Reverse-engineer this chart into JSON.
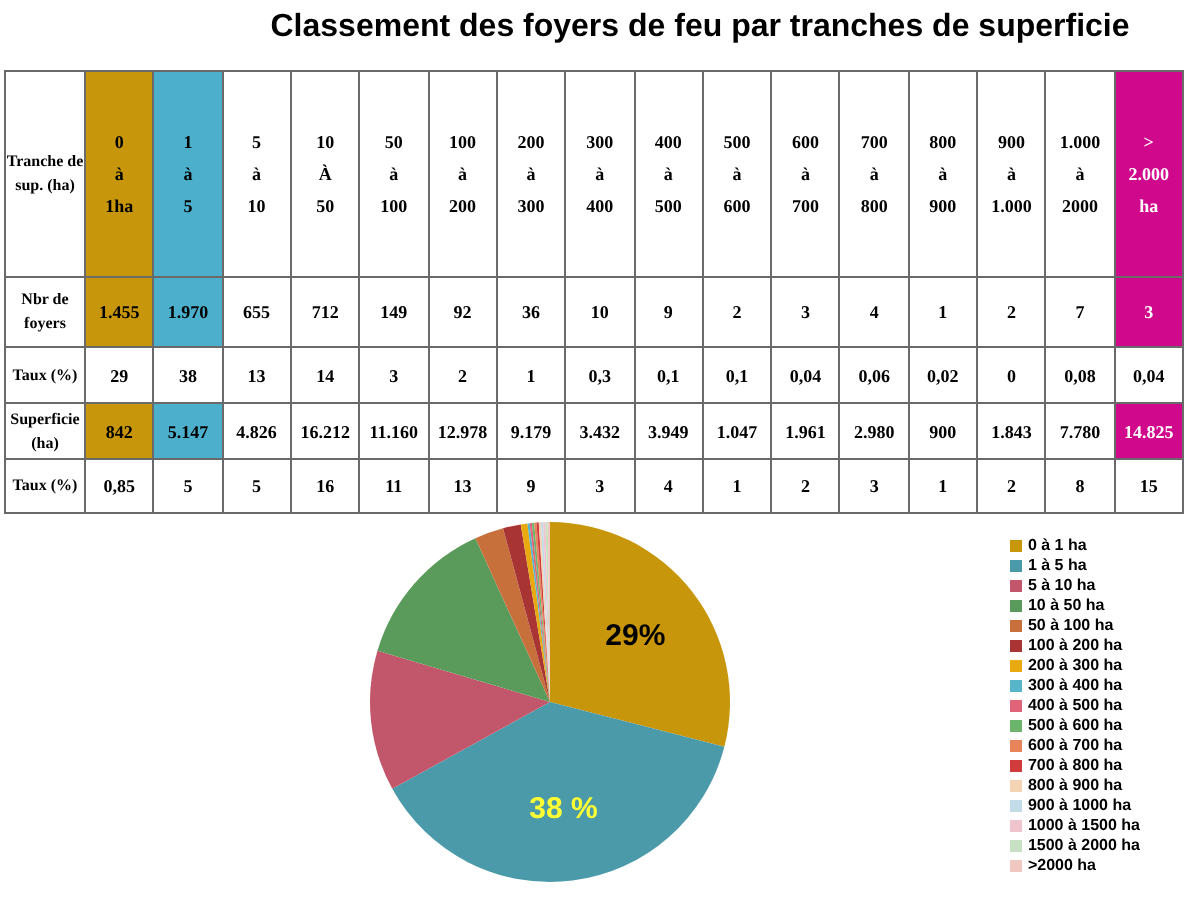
{
  "chart_data": [
    {
      "type": "heatmap",
      "title": "Classement des foyers de feu par tranches de superficie",
      "xlabel": "Tranche de sup. (ha)",
      "categories": [
        "0 à 1ha",
        "1 à 5",
        "5 à 10",
        "10 À 50",
        "50 à 100",
        "100 à 200",
        "200 à 300",
        "300 à 400",
        "400 à 500",
        "500 à 600",
        "600 à 700",
        "700 à 800",
        "800 à 900",
        "900 à 1.000",
        "1.000 à 2000",
        "> 2.000 ha"
      ],
      "y_categories": [
        "Nbr de foyers",
        "Taux (%)",
        "Superficie (ha)",
        "Taux (%)"
      ],
      "cells": [
        [
          1455,
          1970,
          655,
          712,
          149,
          92,
          36,
          10,
          9,
          2,
          3,
          4,
          1,
          2,
          7,
          3
        ],
        [
          29,
          38,
          13,
          14,
          3,
          2,
          1,
          0.3,
          0.1,
          0.1,
          0.04,
          0.06,
          0.02,
          0,
          0.08,
          0.04
        ],
        [
          842,
          5147,
          4826,
          16212,
          11160,
          12978,
          9179,
          3432,
          3949,
          1047,
          1961,
          2980,
          900,
          1843,
          7780,
          14825
        ],
        [
          0.85,
          5,
          5,
          16,
          11,
          13,
          9,
          3,
          4,
          1,
          2,
          3,
          1,
          2,
          8,
          15
        ]
      ],
      "cell_labels": [
        [
          "1.455",
          "1.970",
          "655",
          "712",
          "149",
          "92",
          "36",
          "10",
          "9",
          "2",
          "3",
          "4",
          "1",
          "2",
          "7",
          "3"
        ],
        [
          "29",
          "38",
          "13",
          "14",
          "3",
          "2",
          "1",
          "0,3",
          "0,1",
          "0,1",
          "0,04",
          "0,06",
          "0,02",
          "0",
          "0,08",
          "0,04"
        ],
        [
          "842",
          "5.147",
          "4.826",
          "16.212",
          "11.160",
          "12.978",
          "9.179",
          "3.432",
          "3.949",
          "1.047",
          "1.961",
          "2.980",
          "900",
          "1.843",
          "7.780",
          "14.825"
        ],
        [
          "0,85",
          "5",
          "5",
          "16",
          "11",
          "13",
          "9",
          "3",
          "4",
          "1",
          "2",
          "3",
          "1",
          "2",
          "8",
          "15"
        ]
      ],
      "colors": [
        [
          "#c8960a",
          "#4cb0cc",
          null,
          null,
          null,
          null,
          null,
          null,
          null,
          null,
          null,
          null,
          null,
          null,
          null,
          "#d0088c"
        ],
        [
          null,
          null,
          null,
          null,
          null,
          null,
          null,
          null,
          null,
          null,
          null,
          null,
          null,
          null,
          null,
          null
        ],
        [
          "#c8960a",
          "#4cb0cc",
          null,
          null,
          null,
          null,
          null,
          null,
          null,
          null,
          null,
          null,
          null,
          null,
          null,
          "#d0088c"
        ],
        [
          null,
          null,
          null,
          null,
          null,
          null,
          null,
          null,
          null,
          null,
          null,
          null,
          null,
          null,
          null,
          null
        ]
      ]
    },
    {
      "type": "pie",
      "legend": "right",
      "categories": [
        "0 à 1 ha",
        "1 à 5 ha",
        "5 à 10 ha",
        "10 à 50 ha",
        "50 à 100 ha",
        "100 à 200 ha",
        "200 à 300 ha",
        "300 à 400 ha",
        "400 à 500 ha",
        "500 à 600 ha",
        "600 à 700 ha",
        "700 à 800 ha",
        "800 à 900 ha",
        "900 à 1000 ha",
        "1000 à 1500 ha",
        "1500 à 2000 ha",
        ">2000 ha"
      ],
      "values": [
        29,
        38,
        12.6,
        13.6,
        2.6,
        1.6,
        0.6,
        0.2,
        0.2,
        0.2,
        0.2,
        0.2,
        0.2,
        0.2,
        0.2,
        0.2,
        0.2
      ],
      "colors": [
        "#c8960a",
        "#4a9aaa",
        "#c2566a",
        "#5a9a5a",
        "#c8703c",
        "#a83434",
        "#e8aa10",
        "#58b4c8",
        "#e06478",
        "#6cb46c",
        "#e8845a",
        "#d03c3c",
        "#f4d4b4",
        "#c4dce8",
        "#f0c4cc",
        "#c8e0c4",
        "#f0c8c0"
      ],
      "value_labels": [
        "29%",
        "38 %",
        null,
        null,
        null,
        null,
        null,
        null,
        null,
        null,
        null,
        null,
        null,
        null,
        null,
        null,
        null
      ]
    }
  ]
}
